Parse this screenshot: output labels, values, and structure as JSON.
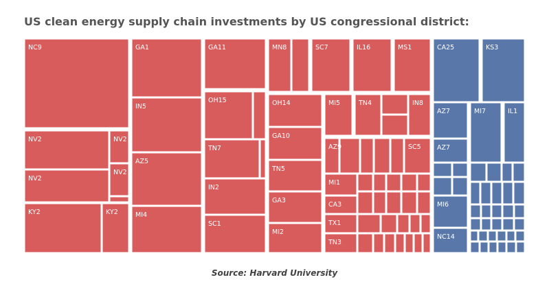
{
  "title": "US clean energy supply chain investments by US congressional district:",
  "source": "Source: Harvard University",
  "colors": {
    "red": "#d85c5c",
    "blue": "#5977a8"
  },
  "chart_data": {
    "type": "treemap",
    "title": "US clean energy supply chain investments by US congressional district:",
    "groups": [
      {
        "party_color": "red",
        "labeled_districts": [
          "NC9",
          "GA1",
          "GA11",
          "MN8",
          "SC7",
          "IL16",
          "MS1",
          "IN5",
          "OH15",
          "OH14",
          "MI5",
          "TN4",
          "IN8",
          "GA10",
          "AZ9",
          "SC5",
          "NV2",
          "NV2",
          "NV2",
          "NV2",
          "TN7",
          "AZ5",
          "TN5",
          "MI1",
          "IN2",
          "GA3",
          "CA3",
          "KY2",
          "KY2",
          "MI4",
          "SC1",
          "TX1",
          "MI2",
          "TN3"
        ]
      },
      {
        "party_color": "blue",
        "labeled_districts": [
          "CA25",
          "KS3",
          "AZ7",
          "MI7",
          "IL1",
          "AZ7",
          "MI6",
          "NC14"
        ]
      }
    ]
  }
}
